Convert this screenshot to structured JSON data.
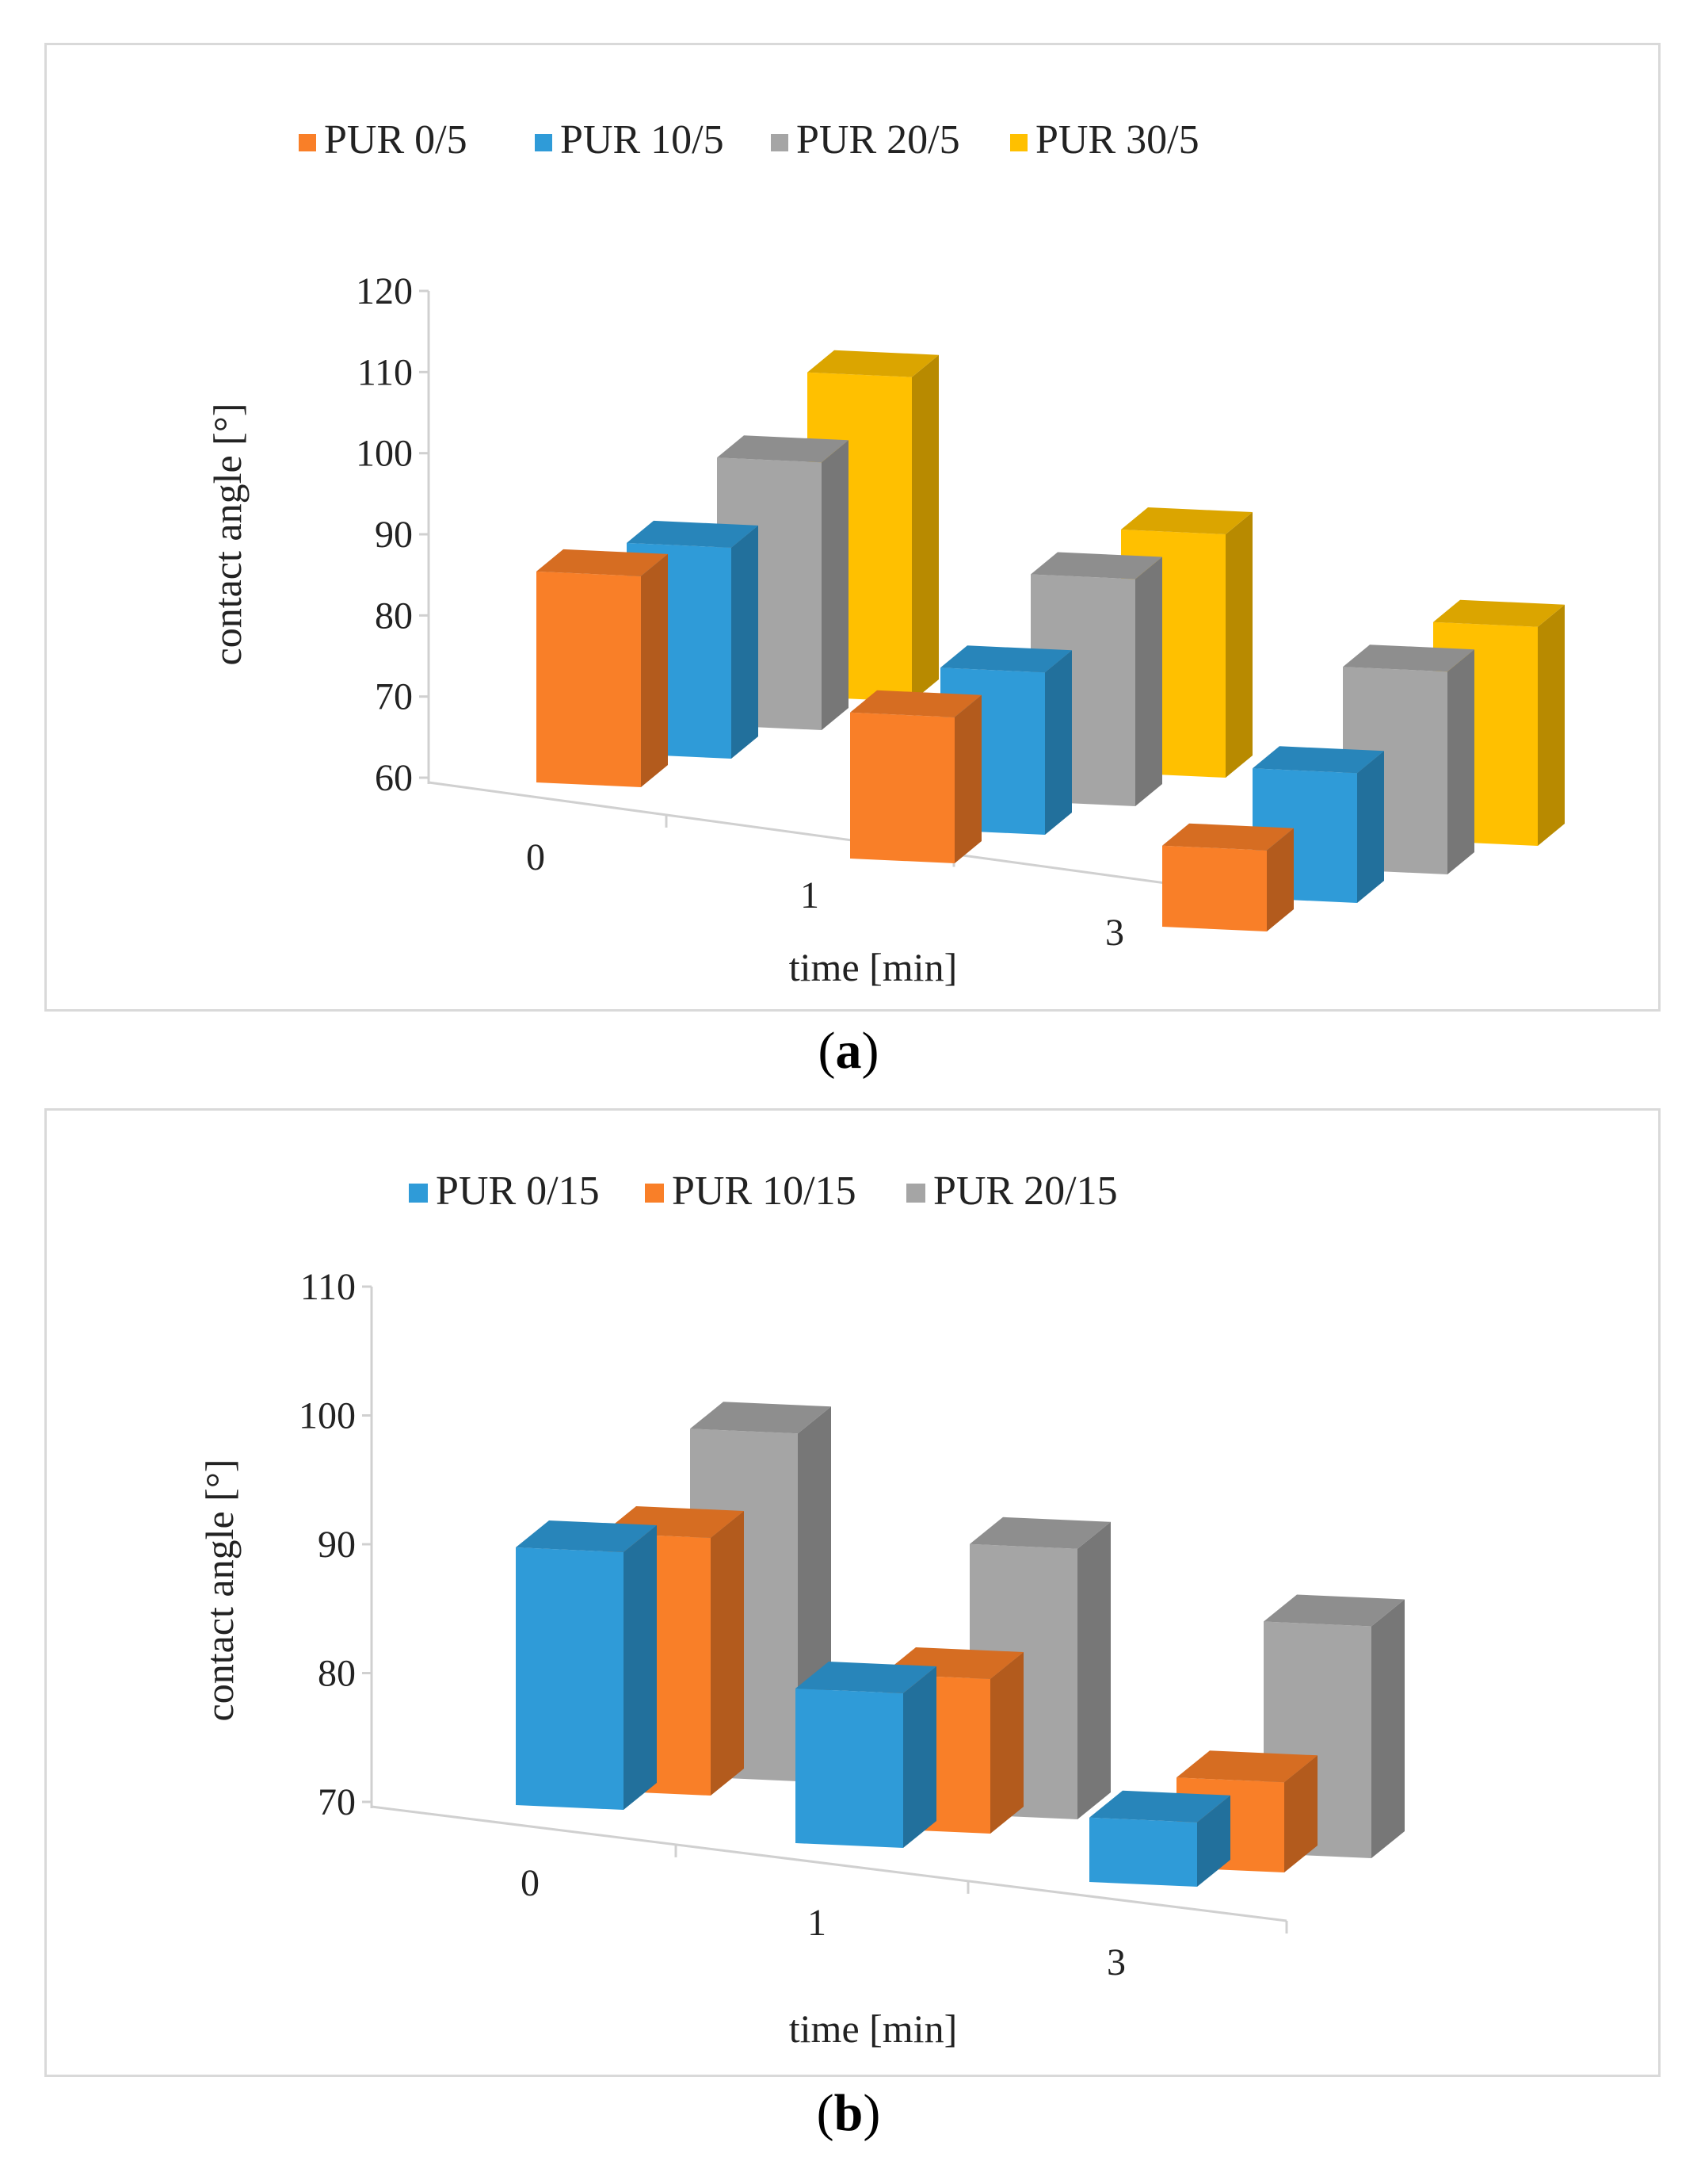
{
  "chart_data": [
    {
      "panel": "a",
      "type": "bar3d",
      "ylabel": "contact angle [°]",
      "xlabel": "time [min]",
      "categories": [
        "0",
        "1",
        "3"
      ],
      "ylim": [
        60,
        120
      ],
      "yticks": [
        60,
        70,
        80,
        90,
        100,
        110,
        120
      ],
      "series": [
        {
          "name": "PUR 0/5",
          "color": "#F97F28",
          "values": [
            86,
            78,
            70
          ]
        },
        {
          "name": "PUR 10/5",
          "color": "#2F9BD8",
          "values": [
            86,
            80,
            76
          ]
        },
        {
          "name": "PUR 20/5",
          "color": "#A5A5A5",
          "values": [
            93,
            88,
            85
          ]
        },
        {
          "name": "PUR 30/5",
          "color": "#FFC000",
          "values": [
            100,
            90,
            87
          ]
        }
      ]
    },
    {
      "panel": "b",
      "type": "bar3d",
      "ylabel": "contact angle [°]",
      "xlabel": "time [min]",
      "categories": [
        "0",
        "1",
        "3"
      ],
      "ylim": [
        70,
        110
      ],
      "yticks": [
        70,
        80,
        90,
        100,
        110
      ],
      "series": [
        {
          "name": "PUR 0/15",
          "color": "#2F9BD8",
          "values": [
            90,
            82,
            75
          ]
        },
        {
          "name": "PUR 10/15",
          "color": "#F97F28",
          "values": [
            90,
            82,
            77
          ]
        },
        {
          "name": "PUR 20/15",
          "color": "#A5A5A5",
          "values": [
            97,
            91,
            88
          ]
        }
      ]
    }
  ],
  "captions": {
    "a": "a",
    "b": "b"
  }
}
